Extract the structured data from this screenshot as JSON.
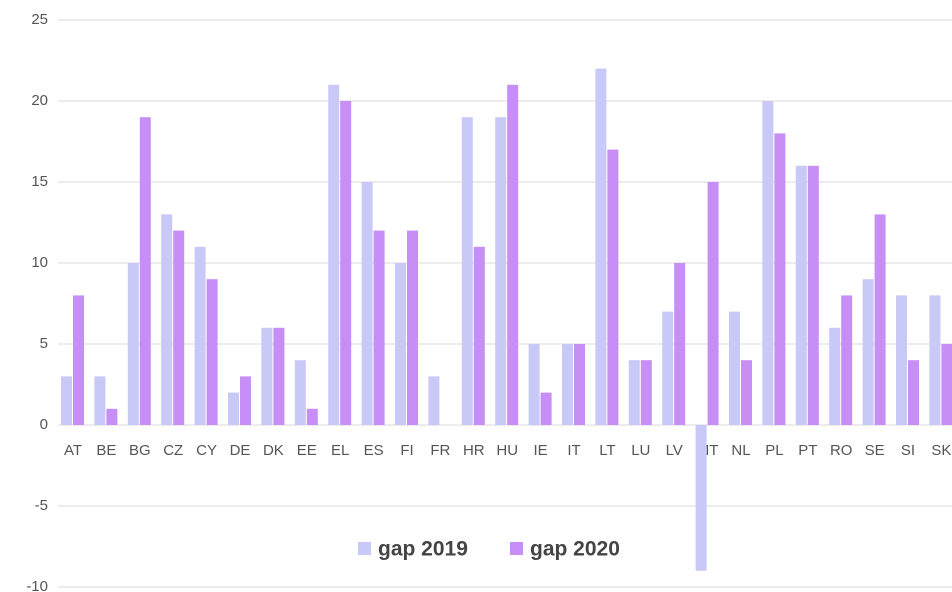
{
  "chart_data": {
    "type": "bar",
    "categories": [
      "AT",
      "BE",
      "BG",
      "CZ",
      "CY",
      "DE",
      "DK",
      "EE",
      "EL",
      "ES",
      "FI",
      "FR",
      "HR",
      "HU",
      "IE",
      "IT",
      "LT",
      "LU",
      "LV",
      "MT",
      "NL",
      "PL",
      "PT",
      "RO",
      "SE",
      "SI",
      "SK"
    ],
    "series": [
      {
        "name": "gap 2019",
        "color": "#c9c9f7",
        "values": [
          3,
          3,
          10,
          13,
          11,
          2,
          6,
          4,
          21,
          15,
          10,
          3,
          19,
          19,
          5,
          5,
          22,
          4,
          7,
          -9,
          7,
          20,
          16,
          6,
          9,
          8,
          8
        ]
      },
      {
        "name": "gap 2020",
        "color": "#c78ef5",
        "values": [
          8,
          1,
          19,
          12,
          9,
          3,
          6,
          1,
          20,
          12,
          12,
          null,
          11,
          21,
          2,
          5,
          17,
          4,
          10,
          15,
          4,
          18,
          16,
          8,
          13,
          4,
          5
        ]
      }
    ],
    "ylim": [
      -10,
      25
    ],
    "yticks": [
      -10,
      -5,
      0,
      5,
      10,
      15,
      20,
      25
    ],
    "grid": true,
    "legend": "bottom"
  }
}
